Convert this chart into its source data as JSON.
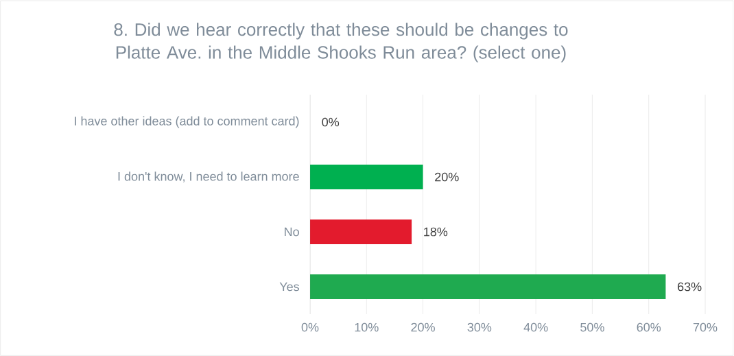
{
  "chart_data": {
    "type": "bar",
    "orientation": "horizontal",
    "title": "8. Did we hear correctly that these should be changes to Platte Ave. in the Middle Shooks Run area? (select one)",
    "categories": [
      "I have other ideas (add to comment card)",
      "I don't know, I need to learn more",
      "No",
      "Yes"
    ],
    "values": [
      0,
      20,
      18,
      63
    ],
    "colors": [
      "#00b050",
      "#00b050",
      "#e31b2d",
      "#1faa50"
    ],
    "value_labels": [
      "0%",
      "20%",
      "18%",
      "63%"
    ],
    "xlim": [
      0,
      70
    ],
    "xticks": [
      {
        "value": 0,
        "label": "0%"
      },
      {
        "value": 10,
        "label": "10%"
      },
      {
        "value": 20,
        "label": "20%"
      },
      {
        "value": 30,
        "label": "30%"
      },
      {
        "value": 40,
        "label": "40%"
      },
      {
        "value": 50,
        "label": "50%"
      },
      {
        "value": 60,
        "label": "60%"
      },
      {
        "value": 70,
        "label": "70%"
      }
    ],
    "grid": "x"
  }
}
